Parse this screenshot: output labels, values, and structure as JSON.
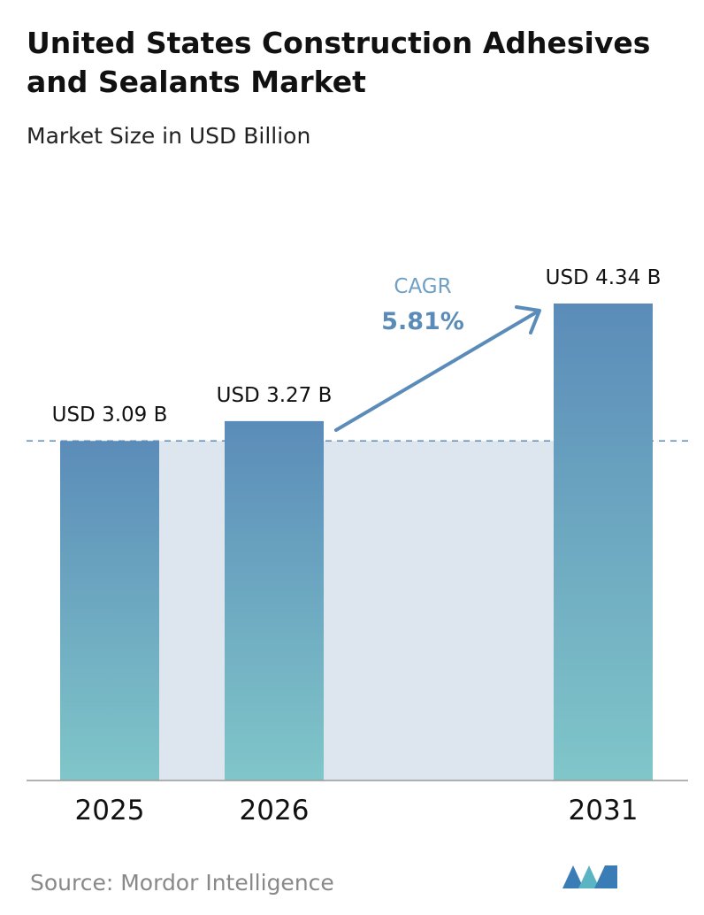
{
  "chart_data": {
    "type": "bar",
    "title": "United States Construction Adhesives and Sealants Market",
    "subtitle": "Market Size in USD Billion",
    "categories": [
      "2025",
      "2026",
      "2031"
    ],
    "values": [
      3.09,
      3.27,
      4.34
    ],
    "value_labels": [
      "USD 3.09 B",
      "USD 3.27 B",
      "USD 4.34 B"
    ],
    "color": [
      "#5b8cb9",
      "#80c6c9"
    ],
    "annotations": {
      "cagr_label": "CAGR",
      "cagr_value": "5.81%"
    },
    "source": "Source: Mordor Intelligence"
  }
}
